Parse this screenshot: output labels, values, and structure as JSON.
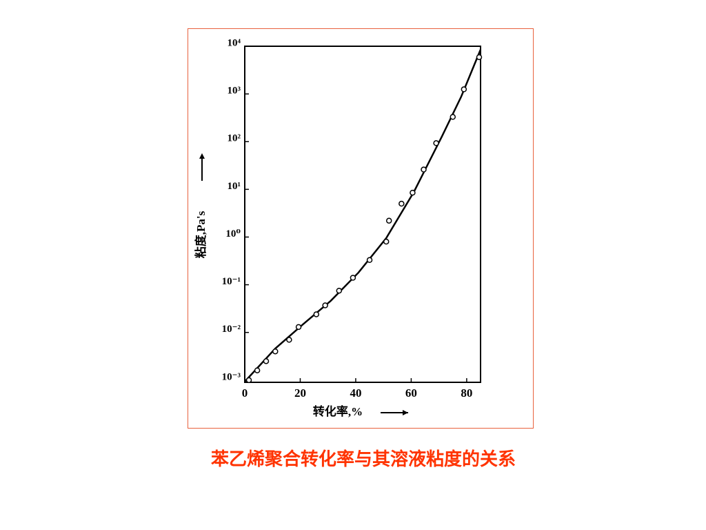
{
  "chart_data": {
    "type": "scatter",
    "x_label": "转化率,%",
    "y_label": "粘度,Pa's",
    "caption": "苯乙烯聚合转化率与其溶液粘度的关系",
    "points": {
      "x": [
        1.5,
        4.5,
        7.7,
        11,
        16,
        19.4,
        25.8,
        29,
        34,
        39,
        45,
        51,
        52,
        56.5,
        60.5,
        64.5,
        69,
        75,
        79,
        84.5
      ],
      "values": [
        0.001,
        0.0016,
        0.0025,
        0.004,
        0.007,
        0.013,
        0.024,
        0.037,
        0.075,
        0.14,
        0.33,
        0.8,
        2.2,
        5,
        8.5,
        26,
        93,
        330,
        1250,
        5900
      ],
      "color": "#000000"
    },
    "fit": {
      "x": [
        0,
        11,
        21,
        31,
        41,
        51,
        61,
        71,
        78,
        85
      ],
      "values": [
        0.00093,
        0.0046,
        0.0148,
        0.046,
        0.18,
        0.95,
        8.9,
        126,
        870,
        8500
      ],
      "color": "#000000"
    },
    "xlim": [
      0,
      85
    ],
    "xticks": [
      0,
      20,
      40,
      60,
      80
    ],
    "ylim": [
      0.0009,
      10000
    ],
    "log_y": true,
    "yticks": [
      {
        "value": 10000,
        "label": "10⁴"
      },
      {
        "value": 1000,
        "label": "10³"
      },
      {
        "value": 100,
        "label": "10²"
      },
      {
        "value": 10,
        "label": "10¹"
      },
      {
        "value": 1,
        "label": "10⁰"
      },
      {
        "value": 0.1,
        "label": "10⁻¹"
      },
      {
        "value": 0.01,
        "label": "10⁻²"
      },
      {
        "value": 0.001,
        "label": "10⁻³"
      }
    ]
  }
}
